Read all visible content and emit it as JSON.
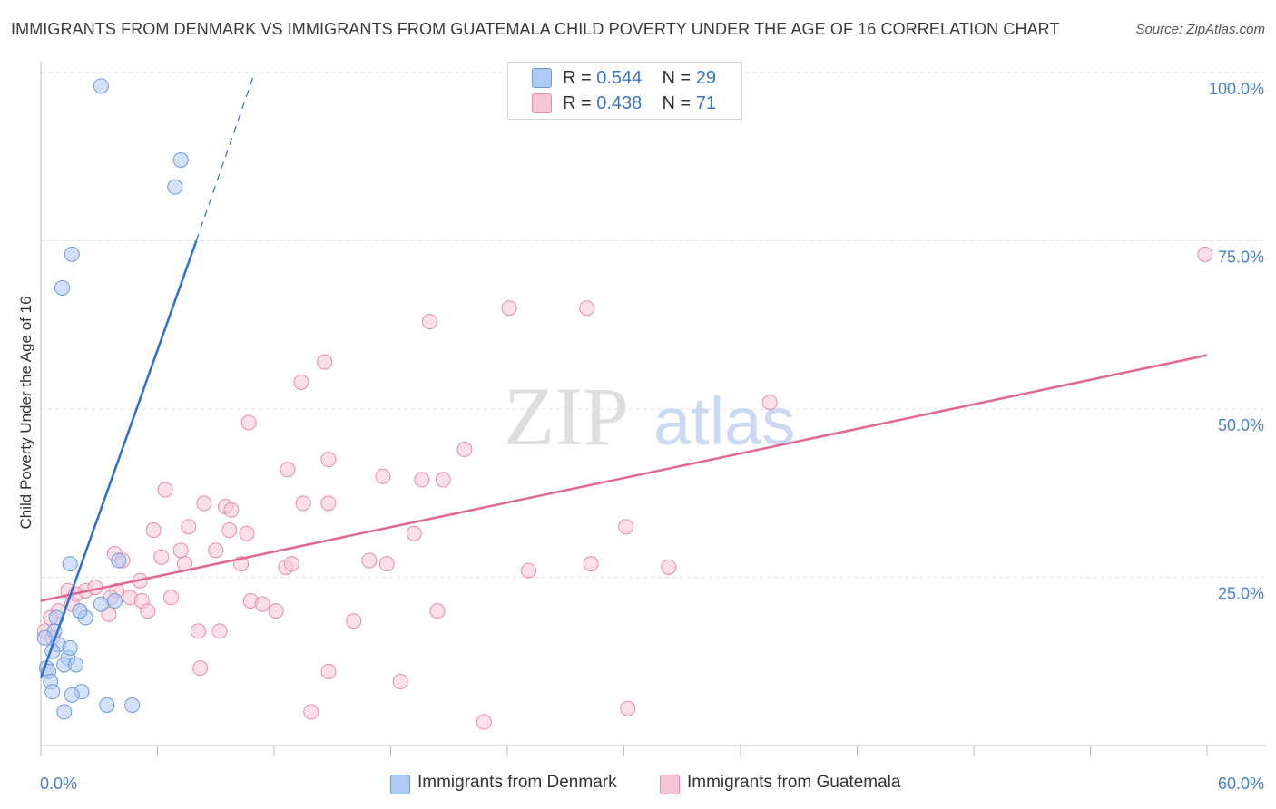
{
  "title": "IMMIGRANTS FROM DENMARK VS IMMIGRANTS FROM GUATEMALA CHILD POVERTY UNDER THE AGE OF 16 CORRELATION CHART",
  "source": "Source: ZipAtlas.com",
  "watermark": {
    "zip": "ZIP",
    "atlas": "atlas"
  },
  "legend": {
    "r_label": "R =",
    "n_label": "N =",
    "denmark": {
      "r": "0.544",
      "n": "29"
    },
    "guatemala": {
      "r": "0.438",
      "n": "71"
    }
  },
  "colors": {
    "denmark_fill": "#aecbf5",
    "denmark_stroke": "#6e9ad6",
    "denmark_line": "#2b6fcf",
    "guatemala_fill": "#f7c6d6",
    "guatemala_stroke": "#e88aaa",
    "guatemala_line": "#e06792",
    "tick_text": "#4a7fc9"
  },
  "chart_data": {
    "type": "scatter",
    "title": "IMMIGRANTS FROM DENMARK VS IMMIGRANTS FROM GUATEMALA CHILD POVERTY UNDER THE AGE OF 16 CORRELATION CHART",
    "xlabel": "",
    "ylabel": "Child Poverty Under the Age of 16",
    "xlim": [
      0,
      60
    ],
    "ylim": [
      0,
      100
    ],
    "x_tick_labels": [
      "0.0%",
      "60.0%"
    ],
    "y_tick_labels": [
      "25.0%",
      "50.0%",
      "75.0%",
      "100.0%"
    ],
    "y_ticks": [
      25,
      50,
      75,
      100
    ],
    "grid": true,
    "legend_position": "top-center",
    "series": [
      {
        "name": "Immigrants from Denmark",
        "points": [
          [
            3.1,
            98.0
          ],
          [
            7.2,
            87.0
          ],
          [
            6.9,
            83.0
          ],
          [
            1.6,
            73.0
          ],
          [
            1.1,
            68.0
          ],
          [
            1.5,
            27.0
          ],
          [
            4.0,
            27.5
          ],
          [
            3.1,
            21.0
          ],
          [
            3.8,
            21.5
          ],
          [
            2.3,
            19.0
          ],
          [
            0.8,
            19.0
          ],
          [
            0.7,
            17.0
          ],
          [
            0.9,
            15.0
          ],
          [
            0.6,
            14.0
          ],
          [
            1.4,
            13.0
          ],
          [
            1.5,
            14.5
          ],
          [
            1.2,
            12.0
          ],
          [
            1.8,
            12.0
          ],
          [
            0.3,
            11.5
          ],
          [
            0.4,
            11.0
          ],
          [
            0.5,
            9.5
          ],
          [
            0.6,
            8.0
          ],
          [
            2.1,
            8.0
          ],
          [
            1.6,
            7.5
          ],
          [
            3.4,
            6.0
          ],
          [
            4.7,
            6.0
          ],
          [
            1.2,
            5.0
          ],
          [
            0.2,
            16.0
          ],
          [
            2.0,
            20.0
          ]
        ],
        "trend": {
          "x0": 0.0,
          "y0": 10.0,
          "x1": 8.0,
          "y1": 75.0,
          "dashed_to_x": 11.0,
          "dashed_to_y": 100.0
        }
      },
      {
        "name": "Immigrants from Guatemala",
        "points": [
          [
            59.9,
            73.0
          ],
          [
            20.0,
            63.0
          ],
          [
            24.1,
            65.0
          ],
          [
            28.1,
            65.0
          ],
          [
            14.6,
            57.0
          ],
          [
            13.4,
            54.0
          ],
          [
            37.5,
            51.0
          ],
          [
            10.7,
            48.0
          ],
          [
            21.8,
            44.0
          ],
          [
            14.8,
            42.5
          ],
          [
            12.7,
            41.0
          ],
          [
            17.6,
            40.0
          ],
          [
            19.6,
            39.5
          ],
          [
            20.7,
            39.5
          ],
          [
            6.4,
            38.0
          ],
          [
            8.4,
            36.0
          ],
          [
            13.5,
            36.0
          ],
          [
            14.8,
            36.0
          ],
          [
            9.5,
            35.5
          ],
          [
            9.8,
            35.0
          ],
          [
            30.1,
            32.5
          ],
          [
            7.6,
            32.5
          ],
          [
            5.8,
            32.0
          ],
          [
            9.7,
            32.0
          ],
          [
            10.6,
            31.5
          ],
          [
            19.2,
            31.5
          ],
          [
            3.8,
            28.5
          ],
          [
            7.2,
            29.0
          ],
          [
            9.0,
            29.0
          ],
          [
            6.2,
            28.0
          ],
          [
            4.2,
            27.5
          ],
          [
            7.4,
            27.0
          ],
          [
            10.3,
            27.0
          ],
          [
            16.9,
            27.5
          ],
          [
            17.8,
            27.0
          ],
          [
            12.6,
            26.5
          ],
          [
            12.9,
            27.0
          ],
          [
            25.1,
            26.0
          ],
          [
            28.3,
            27.0
          ],
          [
            32.3,
            26.5
          ],
          [
            2.3,
            23.0
          ],
          [
            2.8,
            23.5
          ],
          [
            3.9,
            23.0
          ],
          [
            5.1,
            24.5
          ],
          [
            1.4,
            23.0
          ],
          [
            1.6,
            21.0
          ],
          [
            3.6,
            22.0
          ],
          [
            4.6,
            22.0
          ],
          [
            5.2,
            21.5
          ],
          [
            6.7,
            22.0
          ],
          [
            10.8,
            21.5
          ],
          [
            11.4,
            21.0
          ],
          [
            20.4,
            20.0
          ],
          [
            5.5,
            20.0
          ],
          [
            2.0,
            20.0
          ],
          [
            3.5,
            19.5
          ],
          [
            0.9,
            20.0
          ],
          [
            0.5,
            19.0
          ],
          [
            12.1,
            20.0
          ],
          [
            16.1,
            18.5
          ],
          [
            0.2,
            17.0
          ],
          [
            0.6,
            16.0
          ],
          [
            8.1,
            17.0
          ],
          [
            9.2,
            17.0
          ],
          [
            8.2,
            11.5
          ],
          [
            14.8,
            11.0
          ],
          [
            18.5,
            9.5
          ],
          [
            13.9,
            5.0
          ],
          [
            30.2,
            5.5
          ],
          [
            22.8,
            3.5
          ],
          [
            1.8,
            22.5
          ]
        ],
        "trend": {
          "x0": 0.0,
          "y0": 21.5,
          "x1": 60.0,
          "y1": 58.0
        }
      }
    ]
  },
  "bottom_legend": {
    "denmark": "Immigrants from Denmark",
    "guatemala": "Immigrants from Guatemala"
  }
}
